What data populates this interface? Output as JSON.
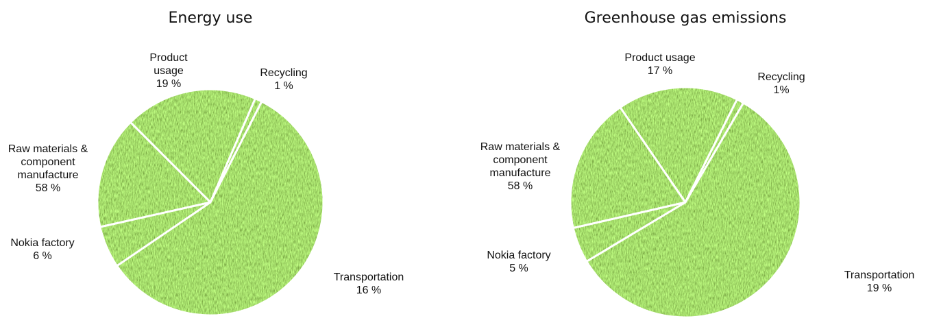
{
  "chart_data": [
    {
      "type": "pie",
      "title": "Energy use",
      "categories": [
        "Product usage",
        "Recycling",
        "Raw materials & component manufacture",
        "Nokia factory",
        "Transportation"
      ],
      "values": [
        19,
        1,
        58,
        6,
        16
      ],
      "value_labels": [
        "19 %",
        "1 %",
        "58 %",
        "6 %",
        "16 %"
      ]
    },
    {
      "type": "pie",
      "title": "Greenhouse gas emissions",
      "categories": [
        "Product usage",
        "Recycling",
        "Raw materials & component manufacture",
        "Nokia factory",
        "Transportation"
      ],
      "values": [
        17,
        1,
        58,
        5,
        19
      ],
      "value_labels": [
        "17 %",
        "1%",
        "58 %",
        "5 %",
        "19 %"
      ]
    }
  ]
}
